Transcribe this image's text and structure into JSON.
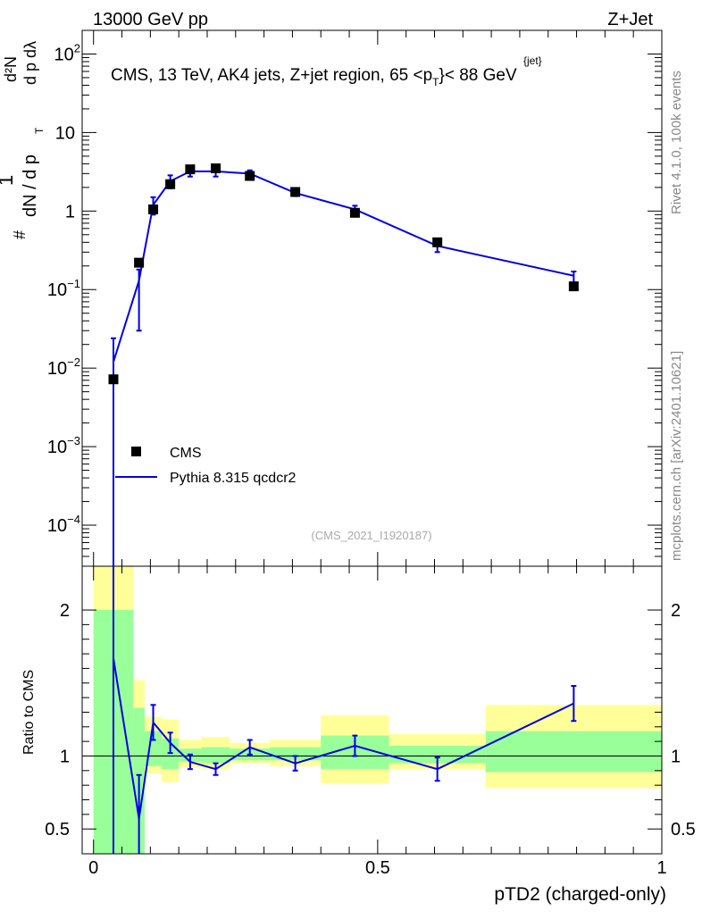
{
  "header": {
    "left": "13000 GeV pp",
    "right": "Z+Jet"
  },
  "side_labels": {
    "rivet": "Rivet 4.1.0,  100k events",
    "mcplots": "mcplots.cern.ch [arXiv:2401.10621]"
  },
  "watermark": "(CMS_2021_I1920187)",
  "ytitle_main": {
    "line1": "1",
    "line2": "dN / d p",
    "sub": "T",
    "extra": "# ",
    "num": "d²N",
    "den": "d p  dλ"
  },
  "ytitle_ratio": "Ratio to CMS",
  "xtitle": "pTD2 (charged-only)",
  "chart_data": [
    {
      "type": "scatter",
      "title": "CMS, 13 TeV, AK4 jets, Z+jet region, 65 <p_T^{jet}< 88 GeV",
      "title_parts": {
        "a": "CMS, 13 TeV, AK4 jets, Z+jet region, 65 <p",
        "sup": "{jet}",
        "sub": "T",
        "b": "}< 88 GeV"
      },
      "yscale": "log",
      "ylim": [
        3e-05,
        200
      ],
      "xlim": [
        -0.02,
        1.0
      ],
      "yticks": [
        {
          "v": 0.0001,
          "base": "10",
          "exp": "−4"
        },
        {
          "v": 0.001,
          "base": "10",
          "exp": "−3"
        },
        {
          "v": 0.01,
          "base": "10",
          "exp": "−2"
        },
        {
          "v": 0.1,
          "base": "10",
          "exp": "−1"
        },
        {
          "v": 1,
          "base": "1",
          "exp": ""
        },
        {
          "v": 10,
          "base": "10",
          "exp": ""
        },
        {
          "v": 100,
          "base": "10",
          "exp": "2"
        }
      ],
      "legend": [
        "CMS",
        "Pythia 8.315 qcdcr2"
      ],
      "legend_position": "lower-left",
      "series": [
        {
          "name": "CMS",
          "x": [
            0.035,
            0.08,
            0.105,
            0.135,
            0.17,
            0.215,
            0.275,
            0.355,
            0.46,
            0.605,
            0.845
          ],
          "y": [
            0.0072,
            0.22,
            1.05,
            2.2,
            3.4,
            3.5,
            2.8,
            1.75,
            0.95,
            0.4,
            0.11
          ]
        },
        {
          "name": "Pythia 8.315 qcdcr2",
          "x": [
            0.035,
            0.08,
            0.105,
            0.135,
            0.17,
            0.215,
            0.275,
            0.355,
            0.46,
            0.605,
            0.845
          ],
          "y": [
            0.012,
            0.13,
            1.2,
            2.4,
            3.2,
            3.2,
            3.0,
            1.7,
            1.05,
            0.36,
            0.15
          ],
          "err_lo": [
            0.01199,
            0.1,
            0.3,
            0.45,
            0.45,
            0.45,
            0.3,
            0.15,
            0.12,
            0.06,
            0.035
          ],
          "err_hi": [
            0.012,
            0.05,
            0.3,
            0.45,
            0.45,
            0.45,
            0.3,
            0.15,
            0.12,
            0.06,
            0.02
          ]
        }
      ]
    },
    {
      "type": "line",
      "title": "Ratio to CMS",
      "ylim": [
        0.33,
        2.3
      ],
      "xlim": [
        -0.02,
        1.0
      ],
      "yticks": [
        0.5,
        1,
        2
      ],
      "xticks": [
        0,
        0.5,
        1
      ],
      "xticklabels": [
        "0",
        "0.5",
        "1"
      ],
      "reference_line": 1,
      "bands": [
        {
          "x0": 0.0,
          "x1": 0.07,
          "y0": 0.2,
          "y1": 2.3,
          "ly0": 0.2,
          "ly1": 2.0
        },
        {
          "x0": 0.07,
          "x1": 0.09,
          "y0": 0.2,
          "y1": 1.52,
          "ly0": 0.2,
          "ly1": 1.33
        },
        {
          "x0": 0.09,
          "x1": 0.12,
          "y0": 0.88,
          "y1": 1.27,
          "ly0": 0.93,
          "ly1": 1.17
        },
        {
          "x0": 0.12,
          "x1": 0.15,
          "y0": 0.82,
          "y1": 1.25,
          "ly0": 0.91,
          "ly1": 1.12
        },
        {
          "x0": 0.15,
          "x1": 0.19,
          "y0": 0.92,
          "y1": 1.11,
          "ly0": 0.96,
          "ly1": 1.05
        },
        {
          "x0": 0.19,
          "x1": 0.24,
          "y0": 0.91,
          "y1": 1.13,
          "ly0": 0.95,
          "ly1": 1.06
        },
        {
          "x0": 0.24,
          "x1": 0.31,
          "y0": 0.95,
          "y1": 1.09,
          "ly0": 0.97,
          "ly1": 1.05
        },
        {
          "x0": 0.31,
          "x1": 0.4,
          "y0": 0.93,
          "y1": 1.11,
          "ly0": 0.97,
          "ly1": 1.06
        },
        {
          "x0": 0.4,
          "x1": 0.52,
          "y0": 0.81,
          "y1": 1.28,
          "ly0": 0.91,
          "ly1": 1.14
        },
        {
          "x0": 0.52,
          "x1": 0.69,
          "y0": 0.91,
          "y1": 1.15,
          "ly0": 0.95,
          "ly1": 1.07
        },
        {
          "x0": 0.69,
          "x1": 1.0,
          "y0": 0.78,
          "y1": 1.35,
          "ly0": 0.89,
          "ly1": 1.17
        }
      ],
      "series": [
        {
          "name": "Pythia 8.315 qcdcr2",
          "x": [
            0.035,
            0.08,
            0.105,
            0.135,
            0.17,
            0.215,
            0.275,
            0.355,
            0.46,
            0.605,
            0.845
          ],
          "y": [
            1.67,
            0.57,
            1.23,
            1.09,
            0.96,
            0.91,
            1.06,
            0.95,
            1.07,
            0.91,
            1.36
          ],
          "err_lo": [
            1.6,
            0.3,
            0.12,
            0.07,
            0.05,
            0.04,
            0.05,
            0.05,
            0.07,
            0.08,
            0.12
          ],
          "err_hi": [
            1.0,
            0.3,
            0.12,
            0.07,
            0.05,
            0.04,
            0.05,
            0.05,
            0.07,
            0.08,
            0.12
          ]
        }
      ]
    }
  ]
}
